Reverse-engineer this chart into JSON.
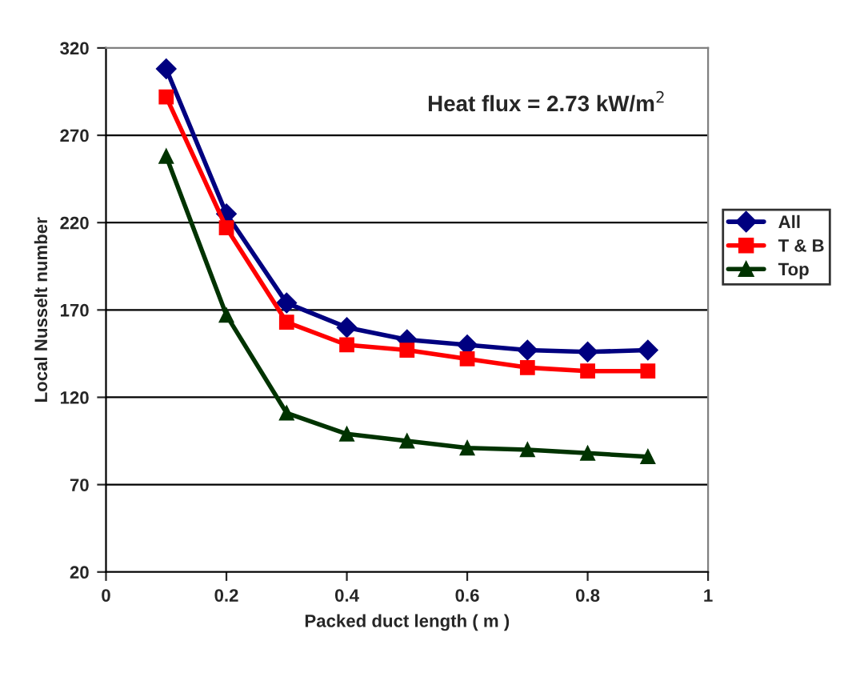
{
  "chart_data": {
    "type": "line",
    "xlabel": "Packed duct length ( m )",
    "ylabel": "Local Nusselt number",
    "annotations": [
      "Heat flux = 2.73 kW/m$^{2}$"
    ],
    "x": [
      0.1,
      0.2,
      0.3,
      0.4,
      0.5,
      0.6,
      0.7,
      0.8,
      0.9
    ],
    "series": [
      {
        "name": "All",
        "color": "#000080",
        "marker": "diamond",
        "values": [
          308,
          225,
          174,
          160,
          153,
          150,
          147,
          146,
          147
        ]
      },
      {
        "name": "T & B",
        "color": "#ff0000",
        "marker": "square",
        "values": [
          292,
          217,
          163,
          150,
          147,
          142,
          137,
          135,
          135
        ]
      },
      {
        "name": "Top",
        "color": "#003300",
        "marker": "triangle",
        "values": [
          258,
          167,
          111,
          99,
          95,
          91,
          90,
          88,
          86
        ]
      }
    ],
    "xlim": [
      0,
      1
    ],
    "xticks": [
      0,
      0.2,
      0.4,
      0.6,
      0.8,
      1
    ],
    "ylim": [
      20,
      320
    ],
    "yticks": [
      20,
      70,
      120,
      170,
      220,
      270,
      320
    ],
    "grid": "y",
    "legend": "right",
    "line_style": "solid"
  }
}
